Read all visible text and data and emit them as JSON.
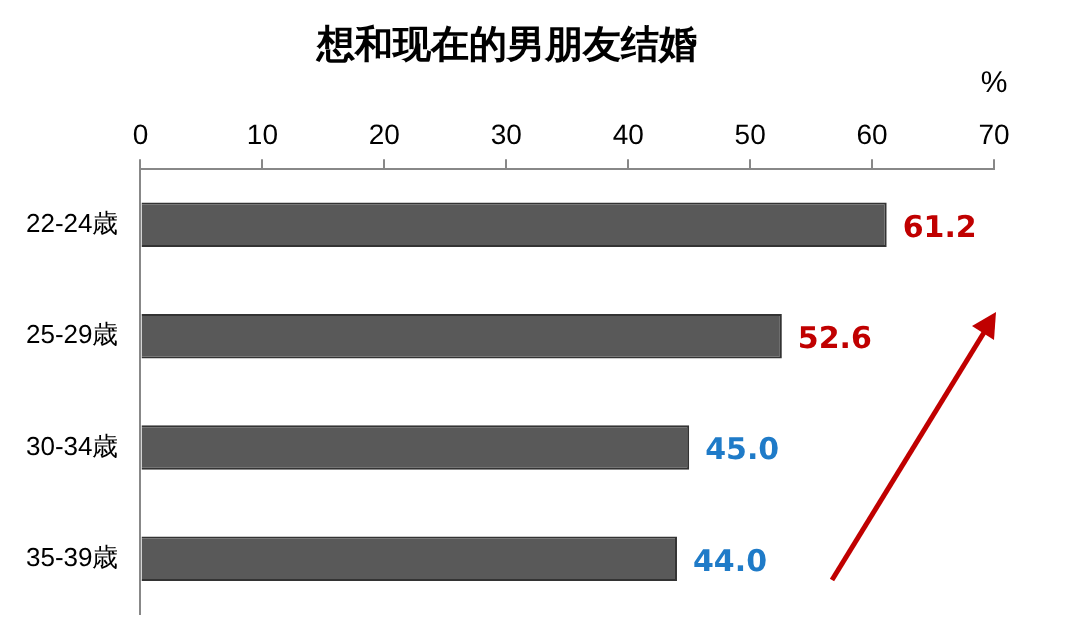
{
  "chart_data": {
    "type": "bar",
    "orientation": "horizontal",
    "title": "想和现在的男朋友结婚",
    "xlabel": "%",
    "categories": [
      "22-24歳",
      "25-29歳",
      "30-34歳",
      "35-39歳"
    ],
    "values": [
      61.2,
      52.6,
      45.0,
      44.0
    ],
    "color": "#595959",
    "value_labels": [
      "61.2",
      "52.6",
      "45.0",
      "44.0"
    ],
    "xlim": [
      0,
      70
    ],
    "xticks": [
      0,
      10,
      20,
      30,
      40,
      50,
      60,
      70
    ],
    "grid": false,
    "legend": false
  }
}
